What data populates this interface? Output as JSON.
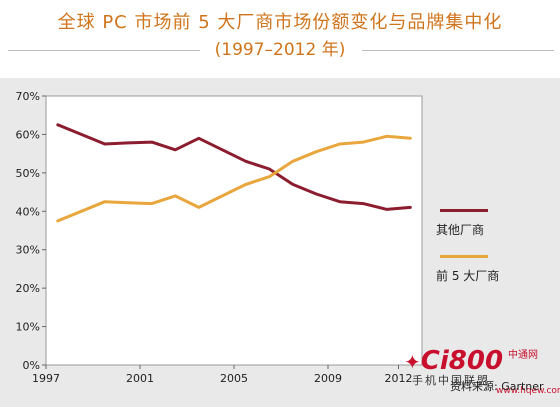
{
  "title": "全球 PC 市场前 5 大厂商市场份额变化与品牌集中化",
  "subtitle": "(1997–2012 年)",
  "source": "资料来源: Gartner",
  "watermark": {
    "logo": "Ci800",
    "logo_mark": "✦",
    "site": "中通网",
    "tagline": "手机中国联盟",
    "url": "www.hqew.com"
  },
  "colors": {
    "others": "#8c1d2e",
    "top5": "#e8a63d",
    "background": "#e9e9e9",
    "title": "#d0741b"
  },
  "chart_data": {
    "type": "line",
    "title": "全球 PC 市场前 5 大厂商市场份额变化与品牌集中化",
    "subtitle": "(1997–2012 年)",
    "xlabel": "",
    "ylabel": "",
    "xlim": [
      1997,
      2013
    ],
    "ylim": [
      0,
      70
    ],
    "x_ticks": [
      1997,
      2001,
      2005,
      2009,
      2012
    ],
    "y_ticks": [
      0,
      10,
      20,
      30,
      40,
      50,
      60,
      70
    ],
    "y_tick_labels": [
      "0%",
      "10%",
      "20%",
      "30%",
      "40%",
      "50%",
      "60%",
      "70%"
    ],
    "grid": false,
    "legend": "right",
    "series": [
      {
        "name": "其他厂商",
        "x": [
          1997.5,
          1998.5,
          1999.5,
          2000.5,
          2001.5,
          2002.5,
          2003.5,
          2004.5,
          2005.5,
          2006.5,
          2007.5,
          2008.5,
          2009.5,
          2010.5,
          2011.5,
          2012.5
        ],
        "values": [
          62.5,
          60,
          57.5,
          57.8,
          58,
          56,
          59,
          56,
          53,
          51,
          47,
          44.5,
          42.5,
          42,
          40.5,
          41
        ]
      },
      {
        "name": "前 5 大厂商",
        "x": [
          1997.5,
          1998.5,
          1999.5,
          2000.5,
          2001.5,
          2002.5,
          2003.5,
          2004.5,
          2005.5,
          2006.5,
          2007.5,
          2008.5,
          2009.5,
          2010.5,
          2011.5,
          2012.5
        ],
        "values": [
          37.5,
          40,
          42.5,
          42.2,
          42,
          44,
          41,
          44,
          47,
          49,
          53,
          55.5,
          57.5,
          58,
          59.5,
          59
        ]
      }
    ]
  }
}
